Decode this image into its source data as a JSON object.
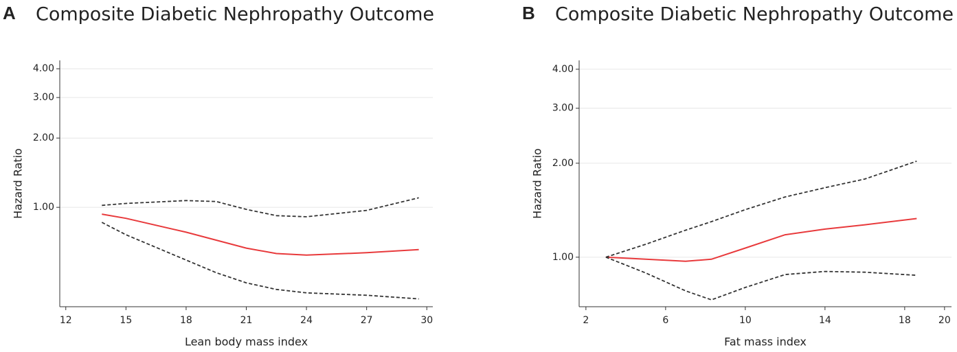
{
  "chart_data": [
    {
      "type": "line",
      "panel_label": "A",
      "title": "Composite Diabetic Nephropathy Outcome",
      "xlabel": "Lean body mass index",
      "ylabel": "Hazard Ratio",
      "x": [
        13.8,
        15,
        18,
        19.5,
        21,
        22.5,
        24,
        27,
        29.6
      ],
      "xlim": [
        11.7,
        30.3
      ],
      "xticks": [
        12,
        15,
        18,
        21,
        24,
        27,
        30
      ],
      "ylim": [
        0.37,
        4.35
      ],
      "yscale": "log",
      "grid": true,
      "yticks": [
        {
          "value": 1,
          "label": "1.00"
        },
        {
          "value": 2,
          "label": "2.00"
        },
        {
          "value": 3,
          "label": "3.00"
        },
        {
          "value": 4,
          "label": "4.00"
        }
      ],
      "series": [
        {
          "color": "#e8393b",
          "style": "solid",
          "values": [
            0.934,
            0.896,
            0.78,
            0.72,
            0.665,
            0.63,
            0.62,
            0.635,
            0.655
          ]
        },
        {
          "color": "#333333",
          "style": "dashed",
          "values": [
            1.02,
            1.04,
            1.07,
            1.06,
            0.98,
            0.92,
            0.91,
            0.97,
            1.1
          ]
        },
        {
          "color": "#333333",
          "style": "dashed",
          "values": [
            0.86,
            0.76,
            0.59,
            0.52,
            0.47,
            0.44,
            0.425,
            0.415,
            0.4
          ]
        }
      ]
    },
    {
      "type": "line",
      "panel_label": "B",
      "title": "Composite Diabetic Nephropathy Outcome",
      "xlabel": "Fat mass index",
      "ylabel": "Hazard Ratio",
      "x": [
        3,
        5,
        7,
        8.3,
        10,
        12,
        14,
        16,
        18.6
      ],
      "xlim": [
        1.66,
        20.35
      ],
      "xticks": [
        2,
        6,
        10,
        14,
        18,
        20
      ],
      "ylim": [
        0.694,
        4.27
      ],
      "yscale": "log",
      "grid": true,
      "yticks": [
        {
          "value": 1,
          "label": "1.00"
        },
        {
          "value": 2,
          "label": "2.00"
        },
        {
          "value": 3,
          "label": "3.00"
        },
        {
          "value": 4,
          "label": "4.00"
        }
      ],
      "series": [
        {
          "color": "#e8393b",
          "style": "solid",
          "values": [
            1.0,
            0.985,
            0.97,
            0.985,
            1.07,
            1.18,
            1.23,
            1.27,
            1.33
          ]
        },
        {
          "color": "#333333",
          "style": "dashed",
          "values": [
            1.0,
            1.1,
            1.22,
            1.3,
            1.42,
            1.56,
            1.67,
            1.78,
            2.03
          ]
        },
        {
          "color": "#333333",
          "style": "dashed",
          "values": [
            1.0,
            0.89,
            0.78,
            0.73,
            0.8,
            0.88,
            0.9,
            0.895,
            0.875
          ]
        }
      ]
    }
  ]
}
